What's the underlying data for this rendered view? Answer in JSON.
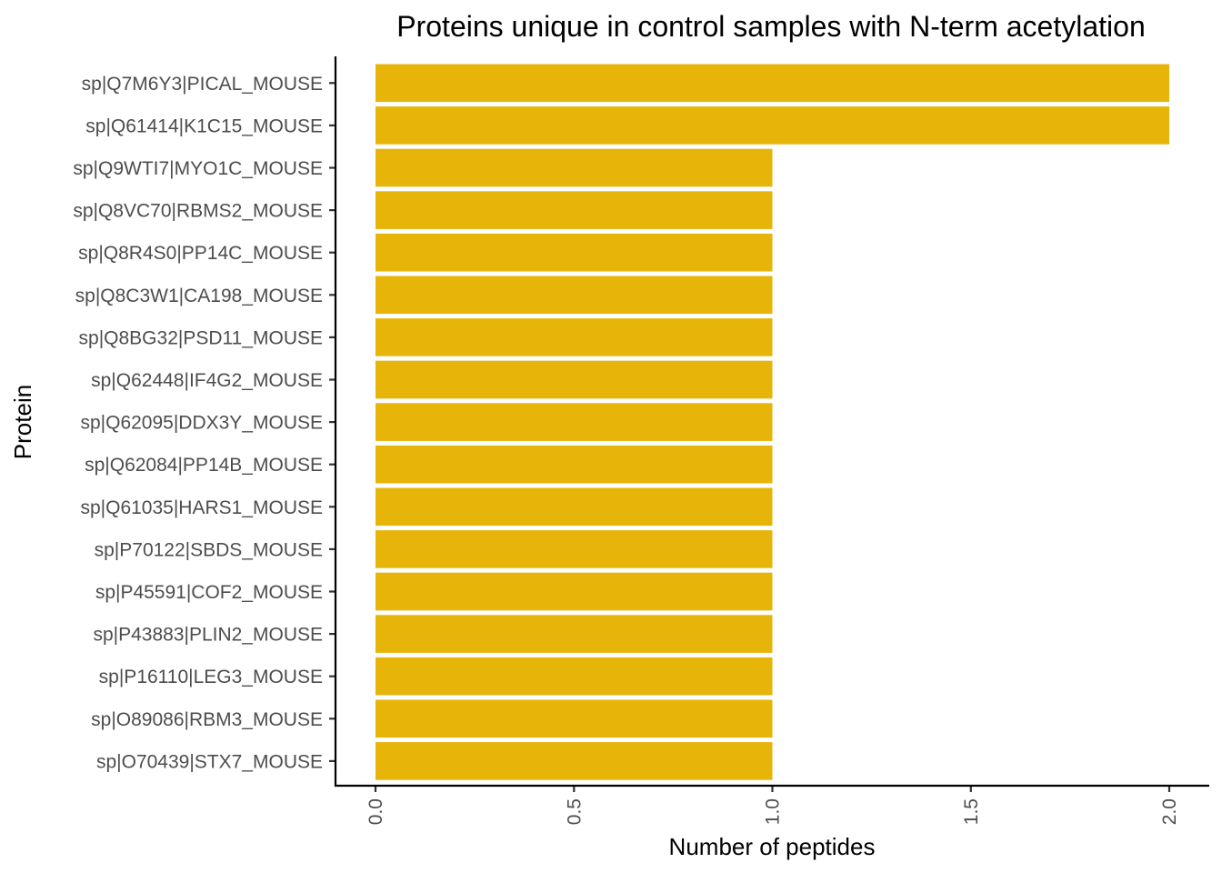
{
  "chart_data": {
    "type": "bar",
    "orientation": "horizontal",
    "title": "Proteins unique in control samples with N-term acetylation",
    "xlabel": "Number of peptides",
    "ylabel": "Protein",
    "xlim": [
      0,
      2
    ],
    "x_ticks": [
      "0.0",
      "0.5",
      "1.0",
      "1.5",
      "2.0"
    ],
    "x_tick_values": [
      0,
      0.5,
      1,
      1.5,
      2
    ],
    "grid": false,
    "bar_color": "#E7B40A",
    "categories": [
      "sp|Q7M6Y3|PICAL_MOUSE",
      "sp|Q61414|K1C15_MOUSE",
      "sp|Q9WTI7|MYO1C_MOUSE",
      "sp|Q8VC70|RBMS2_MOUSE",
      "sp|Q8R4S0|PP14C_MOUSE",
      "sp|Q8C3W1|CA198_MOUSE",
      "sp|Q8BG32|PSD11_MOUSE",
      "sp|Q62448|IF4G2_MOUSE",
      "sp|Q62095|DDX3Y_MOUSE",
      "sp|Q62084|PP14B_MOUSE",
      "sp|Q61035|HARS1_MOUSE",
      "sp|P70122|SBDS_MOUSE",
      "sp|P45591|COF2_MOUSE",
      "sp|P43883|PLIN2_MOUSE",
      "sp|P16110|LEG3_MOUSE",
      "sp|O89086|RBM3_MOUSE",
      "sp|O70439|STX7_MOUSE"
    ],
    "values": [
      2,
      2,
      1,
      1,
      1,
      1,
      1,
      1,
      1,
      1,
      1,
      1,
      1,
      1,
      1,
      1,
      1
    ]
  }
}
